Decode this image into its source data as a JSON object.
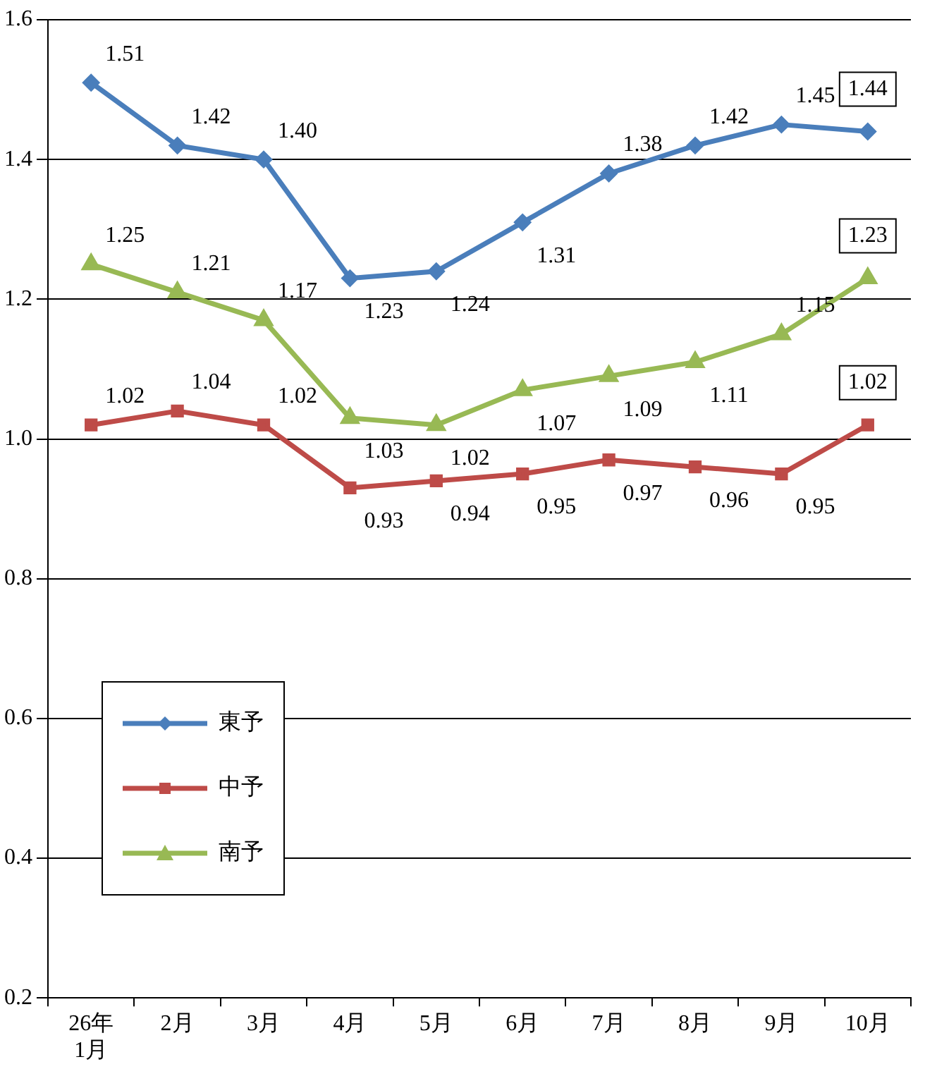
{
  "chart_data": {
    "type": "line",
    "categories": [
      "26年\n1月",
      "2月",
      "3月",
      "4月",
      "5月",
      "6月",
      "7月",
      "8月",
      "9月",
      "10月"
    ],
    "series": [
      {
        "name": "東予",
        "color": "#4a7ebb",
        "marker": "diamond",
        "values": [
          1.51,
          1.42,
          1.4,
          1.23,
          1.24,
          1.31,
          1.38,
          1.42,
          1.45,
          1.44
        ],
        "value_labels": [
          "1.51",
          "1.42",
          "1.40",
          "1.23",
          "1.24",
          "1.31",
          "1.38",
          "1.42",
          "1.45",
          "1.44"
        ]
      },
      {
        "name": "中予",
        "color": "#be4b48",
        "marker": "square",
        "values": [
          1.02,
          1.04,
          1.02,
          0.93,
          0.94,
          0.95,
          0.97,
          0.96,
          0.95,
          1.02
        ],
        "value_labels": [
          "1.02",
          "1.04",
          "1.02",
          "0.93",
          "0.94",
          "0.95",
          "0.97",
          "0.96",
          "0.95",
          "1.02"
        ]
      },
      {
        "name": "南予",
        "color": "#98b954",
        "marker": "triangle",
        "values": [
          1.25,
          1.21,
          1.17,
          1.03,
          1.02,
          1.07,
          1.09,
          1.11,
          1.15,
          1.23
        ],
        "value_labels": [
          "1.25",
          "1.21",
          "1.17",
          "1.03",
          "1.02",
          "1.07",
          "1.09",
          "1.11",
          "1.15",
          "1.23"
        ]
      }
    ],
    "ylim": [
      0.2,
      1.6
    ],
    "yticks": [
      0.2,
      0.4,
      0.6,
      0.8,
      {
        "value": 1,
        "label": "1.0"
      },
      1.2,
      1.4,
      1.6
    ],
    "grid": "y",
    "legend": "bottom left",
    "line_style": "solid"
  }
}
